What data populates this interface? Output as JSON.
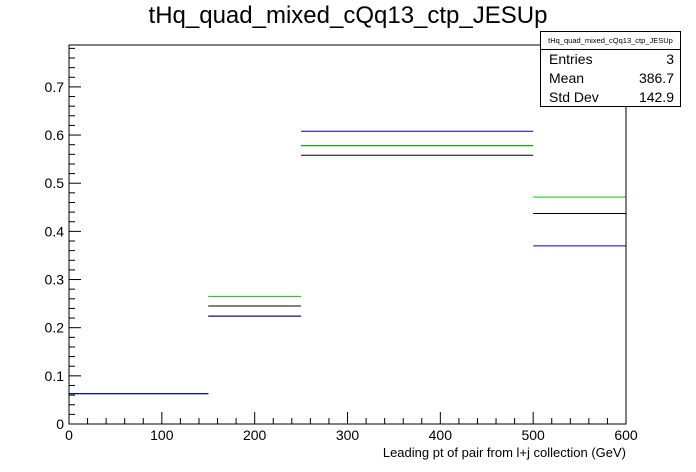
{
  "chart_data": {
    "type": "step-histogram",
    "title": "tHq_quad_mixed_cQq13_ctp_JESUp",
    "xlabel": "Leading pt of pair from l+j collection (GeV)",
    "ylabel": "",
    "xlim": [
      0,
      600
    ],
    "ylim": [
      0,
      0.787
    ],
    "x_ticks": [
      0,
      100,
      200,
      300,
      400,
      500,
      600
    ],
    "y_ticks": [
      0,
      0.1,
      0.2,
      0.3,
      0.4,
      0.5,
      0.6,
      0.7
    ],
    "bin_edges": [
      0,
      150,
      250,
      500,
      600
    ],
    "series": [
      {
        "color": "#000000",
        "values": [
          0.063,
          0.245,
          0.578,
          0.437
        ]
      },
      {
        "color": "#000000",
        "values": [
          0.063,
          0.224,
          0.558,
          0.437
        ]
      },
      {
        "color": "#00cc00",
        "values": [
          0.063,
          0.265,
          0.578,
          0.471
        ]
      },
      {
        "color": "#0000cc",
        "values": [
          0.063,
          0.224,
          0.608,
          0.37
        ]
      }
    ],
    "stats": {
      "name": "tHq_quad_mixed_cQq13_ctp_JESUp",
      "rows": [
        {
          "label": "Entries",
          "value": "3"
        },
        {
          "label": "Mean",
          "value": "386.7"
        },
        {
          "label": "Std Dev",
          "value": "142.9"
        }
      ]
    }
  }
}
